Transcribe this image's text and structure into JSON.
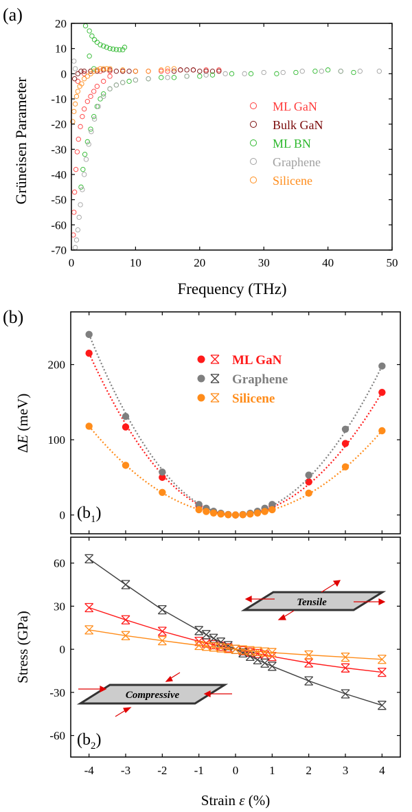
{
  "figure": {
    "panel_a_label": "(a)",
    "panel_b_label": "(b)",
    "panel_b1_label": "(b",
    "panel_b1_sub": "1",
    "panel_b2_label": "(b",
    "panel_b2_sub": "2"
  },
  "chart_data": [
    {
      "id": "a",
      "type": "scatter",
      "title": "",
      "xlabel": "Frequency (THz)",
      "ylabel": "Grüneisen Parameter",
      "xlim": [
        0,
        50
      ],
      "ylim": [
        -70,
        20
      ],
      "xticks": [
        0,
        10,
        20,
        30,
        40,
        50
      ],
      "yticks": [
        20,
        10,
        0,
        -10,
        -20,
        -30,
        -40,
        -50,
        -60,
        -70
      ],
      "legend": "center-right",
      "series": [
        {
          "name": "ML GaN",
          "color": "#ff3b3b",
          "marker": "open-circle",
          "points": [
            [
              0.3,
              -64
            ],
            [
              0.4,
              -55
            ],
            [
              0.5,
              -47
            ],
            [
              0.7,
              -38
            ],
            [
              0.9,
              -31
            ],
            [
              1.1,
              -26
            ],
            [
              1.4,
              -21
            ],
            [
              1.7,
              -17
            ],
            [
              2.0,
              -14
            ],
            [
              2.5,
              -11
            ],
            [
              3.0,
              -9
            ],
            [
              3.5,
              -7
            ],
            [
              4.0,
              -5
            ],
            [
              5.0,
              -3
            ],
            [
              6.0,
              -1
            ],
            [
              1.0,
              -3
            ],
            [
              2.0,
              0
            ],
            [
              3.0,
              1
            ],
            [
              4.5,
              1
            ],
            [
              6.0,
              1
            ],
            [
              8.0,
              1
            ],
            [
              10.0,
              1
            ],
            [
              12.0,
              1
            ],
            [
              14.0,
              1
            ],
            [
              15.0,
              1
            ],
            [
              17.0,
              1.5
            ],
            [
              19.0,
              1.5
            ],
            [
              21.0,
              1.5
            ],
            [
              23.0,
              1.5
            ]
          ]
        },
        {
          "name": "Bulk GaN",
          "color": "#7a0a0a",
          "marker": "open-circle",
          "points": [
            [
              0.5,
              -2
            ],
            [
              1.0,
              0
            ],
            [
              1.5,
              1
            ],
            [
              2.0,
              1
            ],
            [
              3.0,
              1
            ],
            [
              4.0,
              1
            ],
            [
              5.0,
              1.5
            ],
            [
              6.0,
              1.5
            ],
            [
              7.0,
              1
            ],
            [
              8.0,
              1
            ],
            [
              9.0,
              1
            ],
            [
              10.0,
              1
            ],
            [
              16.0,
              1
            ],
            [
              17.0,
              1.5
            ],
            [
              18.0,
              1.5
            ],
            [
              19.0,
              1.5
            ],
            [
              20.0,
              1
            ],
            [
              21.0,
              1
            ],
            [
              22.0,
              1
            ],
            [
              23.0,
              1
            ]
          ]
        },
        {
          "name": "ML BN",
          "color": "#2db82d",
          "marker": "open-circle",
          "points": [
            [
              2.2,
              19
            ],
            [
              2.8,
              17
            ],
            [
              3.2,
              15
            ],
            [
              3.6,
              13.5
            ],
            [
              4.0,
              12.5
            ],
            [
              4.5,
              11.5
            ],
            [
              5.0,
              11
            ],
            [
              5.5,
              10.5
            ],
            [
              6.0,
              10
            ],
            [
              6.5,
              9.8
            ],
            [
              7.0,
              9.6
            ],
            [
              7.5,
              9.5
            ],
            [
              8.0,
              9.5
            ],
            [
              8.3,
              10.5
            ],
            [
              1.5,
              -45
            ],
            [
              1.8,
              -38
            ],
            [
              2.1,
              -32
            ],
            [
              2.5,
              -27
            ],
            [
              3.0,
              -22
            ],
            [
              3.5,
              -17
            ],
            [
              4.0,
              -13
            ],
            [
              4.5,
              -10
            ],
            [
              5.0,
              -8
            ],
            [
              6.0,
              -6
            ],
            [
              7.0,
              -4.5
            ],
            [
              8.0,
              -3.5
            ],
            [
              9.0,
              -3
            ],
            [
              10.0,
              -2.5
            ],
            [
              12.0,
              -2
            ],
            [
              14.0,
              -1.5
            ],
            [
              16.0,
              -1.5
            ],
            [
              18.0,
              -1
            ],
            [
              20.0,
              -1
            ],
            [
              22.0,
              -0.5
            ],
            [
              25.0,
              0
            ],
            [
              28.0,
              0
            ],
            [
              32.0,
              0
            ],
            [
              35.0,
              0.5
            ],
            [
              38.0,
              1
            ],
            [
              40.0,
              1.5
            ],
            [
              42.0,
              1
            ],
            [
              44.0,
              0.5
            ],
            [
              2.8,
              7
            ],
            [
              3.5,
              2
            ]
          ]
        },
        {
          "name": "Graphene",
          "color": "#a0a0a0",
          "marker": "open-circle",
          "points": [
            [
              0.6,
              -69
            ],
            [
              0.8,
              -66
            ],
            [
              1.0,
              -62
            ],
            [
              1.2,
              -57
            ],
            [
              1.4,
              -52
            ],
            [
              1.7,
              -46
            ],
            [
              2.0,
              -40
            ],
            [
              2.3,
              -34
            ],
            [
              2.7,
              -28
            ],
            [
              3.1,
              -23
            ],
            [
              3.6,
              -18
            ],
            [
              4.2,
              -13
            ],
            [
              5.0,
              -9
            ],
            [
              6.0,
              -6
            ],
            [
              7.0,
              -4.5
            ],
            [
              8.0,
              -3.5
            ],
            [
              10.0,
              -2.5
            ],
            [
              12.0,
              -2
            ],
            [
              15.0,
              -1.5
            ],
            [
              18.0,
              -1
            ],
            [
              21.0,
              -0.5
            ],
            [
              24.0,
              0
            ],
            [
              27.0,
              0
            ],
            [
              30.0,
              0.5
            ],
            [
              33.0,
              0.5
            ],
            [
              36.0,
              1
            ],
            [
              39.0,
              1
            ],
            [
              42.0,
              1
            ],
            [
              45.0,
              1
            ],
            [
              48.0,
              1
            ],
            [
              0.4,
              5
            ],
            [
              0.6,
              2
            ]
          ]
        },
        {
          "name": "Silicene",
          "color": "#ff8c1a",
          "marker": "open-circle",
          "points": [
            [
              0.2,
              -19
            ],
            [
              0.4,
              -15
            ],
            [
              0.6,
              -12
            ],
            [
              0.8,
              -9
            ],
            [
              1.0,
              -7
            ],
            [
              1.3,
              -5
            ],
            [
              1.6,
              -4
            ],
            [
              2.0,
              -2
            ],
            [
              2.5,
              -1
            ],
            [
              3.0,
              0
            ],
            [
              3.5,
              1
            ],
            [
              4.0,
              1.5
            ],
            [
              4.5,
              2
            ],
            [
              5.0,
              2
            ],
            [
              5.5,
              2
            ],
            [
              6.0,
              2
            ],
            [
              8.0,
              1.5
            ],
            [
              10.0,
              1
            ],
            [
              12.0,
              1
            ],
            [
              14.0,
              1.5
            ],
            [
              15.0,
              2
            ],
            [
              16.0,
              2
            ]
          ]
        }
      ]
    },
    {
      "id": "b1",
      "type": "scatter",
      "title": "",
      "xlabel": "",
      "ylabel_prefix": "Δ",
      "ylabel_var": "E",
      "ylabel_unit": " (meV)",
      "xlim": [
        -4.5,
        4.5
      ],
      "ylim": [
        -25,
        270
      ],
      "yticks": [
        0,
        100,
        200
      ],
      "legend": "top-center",
      "series": [
        {
          "name": "ML GaN",
          "color": "#ff1a1a",
          "x": [
            -4,
            -3,
            -2,
            -1,
            -0.8,
            -0.6,
            -0.4,
            -0.2,
            0,
            0.2,
            0.4,
            0.6,
            0.8,
            1,
            2,
            3,
            4
          ],
          "values": [
            215,
            117,
            50,
            12,
            8,
            4.5,
            2,
            0.5,
            0,
            0.5,
            2,
            4.5,
            8,
            12,
            44,
            95,
            163
          ]
        },
        {
          "name": "Graphene",
          "color": "#7f7f7f",
          "x": [
            -4,
            -3,
            -2,
            -1,
            -0.8,
            -0.6,
            -0.4,
            -0.2,
            0,
            0.2,
            0.4,
            0.6,
            0.8,
            1,
            2,
            3,
            4
          ],
          "values": [
            240,
            131,
            57,
            14,
            9,
            5,
            2.3,
            0.6,
            0,
            0.6,
            2.3,
            5,
            9,
            14,
            53,
            114,
            198
          ]
        },
        {
          "name": "Silicene",
          "color": "#ff8c1a",
          "x": [
            -4,
            -3,
            -2,
            -1,
            -0.8,
            -0.6,
            -0.4,
            -0.2,
            0,
            0.2,
            0.4,
            0.6,
            0.8,
            1,
            2,
            3,
            4
          ],
          "values": [
            118,
            66,
            30,
            7,
            4.6,
            2.6,
            1.2,
            0.3,
            0,
            0.3,
            1.2,
            2.6,
            4.6,
            7,
            29,
            64,
            112
          ]
        }
      ]
    },
    {
      "id": "b2",
      "type": "line",
      "title": "",
      "xlabel_text": "Strain  ",
      "xlabel_var": "ε",
      "xlabel_unit": " (%)",
      "ylabel": "Stress (GPa)",
      "xlim": [
        -4.5,
        4.5
      ],
      "ylim": [
        -75,
        78
      ],
      "xticks": [
        -4,
        -3,
        -2,
        -1,
        0,
        1,
        2,
        3,
        4
      ],
      "yticks": [
        60,
        30,
        0,
        -30,
        -60
      ],
      "annotations": [
        "Tensile",
        "Compressive"
      ],
      "series": [
        {
          "name": "ML GaN",
          "color": "#ff1a1a",
          "x": [
            -4,
            -3,
            -2,
            -1,
            -0.8,
            -0.6,
            -0.4,
            -0.2,
            0,
            0.2,
            0.4,
            0.6,
            0.8,
            1,
            2,
            3,
            4
          ],
          "values": [
            29,
            20.5,
            12.5,
            5.5,
            4.3,
            3.2,
            2.1,
            1.0,
            0,
            -1.0,
            -2.0,
            -3.0,
            -4.0,
            -5.0,
            -9.5,
            -13,
            -16
          ]
        },
        {
          "name": "Graphene",
          "color": "#404040",
          "x": [
            -4,
            -3,
            -2,
            -1,
            -0.8,
            -0.6,
            -0.4,
            -0.2,
            0,
            0.2,
            0.4,
            0.6,
            0.8,
            1,
            2,
            3,
            4
          ],
          "values": [
            63,
            45,
            27.5,
            13,
            10.2,
            7.6,
            5.0,
            2.5,
            0,
            -2.5,
            -4.9,
            -7.3,
            -9.6,
            -11.8,
            -22,
            -31,
            -39
          ]
        },
        {
          "name": "Silicene",
          "color": "#ff8c1a",
          "x": [
            -4,
            -3,
            -2,
            -1,
            -0.8,
            -0.6,
            -0.4,
            -0.2,
            0,
            0.2,
            0.4,
            0.6,
            0.8,
            1,
            2,
            3,
            4
          ],
          "values": [
            13.5,
            9.5,
            6,
            2.7,
            2.1,
            1.6,
            1.0,
            0.5,
            0,
            -0.5,
            -1.0,
            -1.5,
            -1.9,
            -2.3,
            -4,
            -5.5,
            -7
          ]
        }
      ]
    }
  ]
}
